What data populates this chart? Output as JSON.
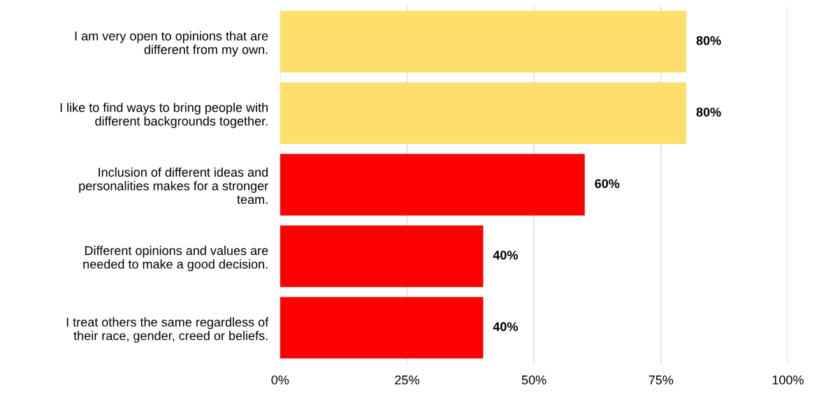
{
  "chart_data": {
    "type": "bar",
    "orientation": "horizontal",
    "categories": [
      "I am very open to opinions that are\ndifferent from my own.",
      "I like to find ways to bring people with\ndifferent backgrounds together.",
      "Inclusion of different ideas and\npersonalities makes for a stronger\nteam.",
      "Different opinions and values are\nneeded to make a good decision.",
      "I treat others the same regardless of\ntheir race, gender, creed or beliefs."
    ],
    "values": [
      80,
      80,
      60,
      40,
      40
    ],
    "colors": [
      "#ffdf6b",
      "#ffdf6b",
      "#ff0000",
      "#ff0000",
      "#ff0000"
    ],
    "value_labels": [
      "80%",
      "80%",
      "60%",
      "40%",
      "40%"
    ],
    "xlim": [
      0,
      100
    ],
    "xticks": [
      {
        "value": 0,
        "label": "0%"
      },
      {
        "value": 25,
        "label": "25%"
      },
      {
        "value": 50,
        "label": "50%"
      },
      {
        "value": 75,
        "label": "75%"
      },
      {
        "value": 100,
        "label": "100%"
      }
    ],
    "grid": "x",
    "legend": false
  }
}
